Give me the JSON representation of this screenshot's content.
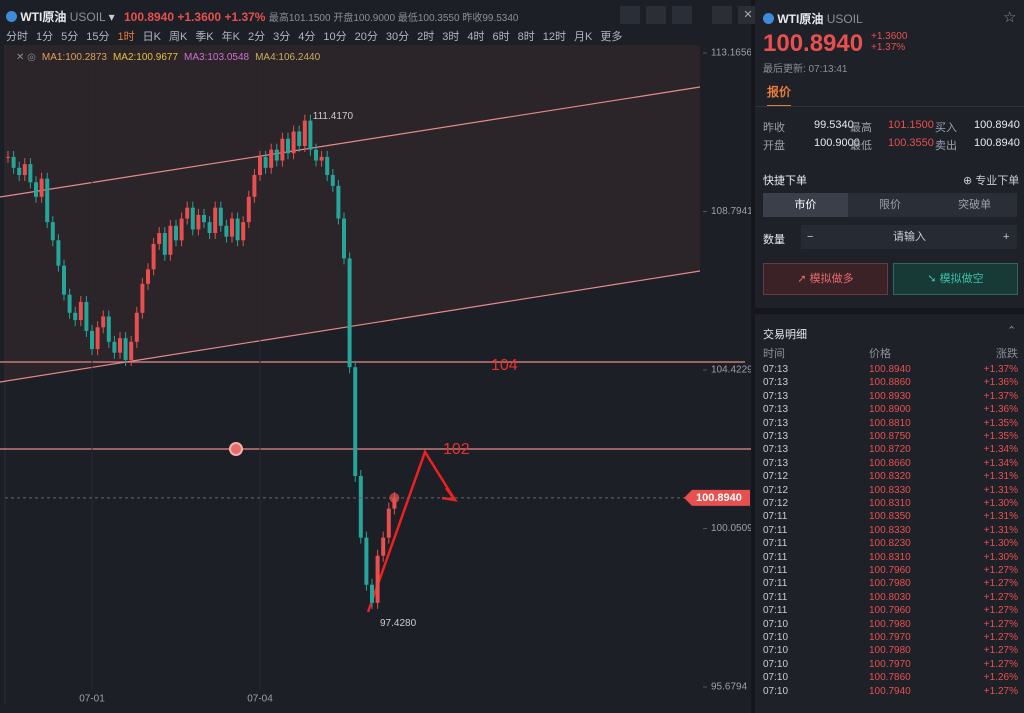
{
  "toolbar": {
    "symbol": "WTI原油",
    "code": "USOIL",
    "price": "100.8940",
    "change": "+1.3600",
    "change_pct": "+1.37%",
    "high_label": "最高",
    "high": "101.1500",
    "open_label": "开盘",
    "open": "100.9000",
    "low_label": "最低",
    "low": "100.3550",
    "prev_label": "昨收",
    "prev": "99.5340"
  },
  "intervals": [
    "分时",
    "1分",
    "5分",
    "15分",
    "1时",
    "日K",
    "周K",
    "季K",
    "年K",
    "2分",
    "3分",
    "4分",
    "10分",
    "20分",
    "30分",
    "2时",
    "3时",
    "4时",
    "6时",
    "8时",
    "12时",
    "月K",
    "更多"
  ],
  "active_interval": "1时",
  "ma": [
    "MA1:100.2873",
    "MA2:100.9677",
    "MA3:103.0548",
    "MA4:106.2440"
  ],
  "ma_colors": [
    "#e0a060",
    "#e8c040",
    "#d070d0",
    "#c8b060"
  ],
  "chart": {
    "type": "candlestick",
    "up_color": "#e84f4f",
    "down_color": "#26a69a",
    "closes": [
      110.3,
      110.0,
      109.8,
      110.1,
      109.6,
      109.2,
      109.7,
      108.5,
      108.0,
      107.3,
      106.5,
      106.0,
      105.8,
      106.3,
      105.5,
      105.0,
      105.6,
      105.9,
      105.2,
      104.9,
      105.3,
      104.7,
      105.2,
      106.0,
      106.8,
      107.2,
      107.9,
      108.2,
      107.6,
      108.4,
      108.0,
      108.6,
      108.9,
      108.3,
      108.7,
      108.5,
      108.2,
      108.9,
      108.4,
      108.1,
      108.6,
      108.0,
      108.5,
      109.2,
      109.8,
      110.3,
      110.0,
      110.5,
      110.2,
      110.8,
      110.4,
      111.0,
      110.6,
      111.3,
      110.5,
      110.2,
      110.3,
      109.8,
      109.5,
      108.6,
      107.5,
      104.5,
      101.5,
      99.8,
      98.5,
      98.0,
      99.3,
      99.8,
      100.6,
      100.894
    ],
    "ylim": [
      95.6794,
      113.1656
    ],
    "yticks": [
      113.1656,
      108.7941,
      104.4229,
      100.0509,
      95.6794
    ],
    "xticks": [
      {
        "value": 15,
        "label": "07-01"
      },
      {
        "value": 45,
        "label": "07-04"
      }
    ],
    "last_price": {
      "value": 100.894,
      "label": "100.8940"
    },
    "high_mark": {
      "value": 111.417,
      "label": "111.4170"
    },
    "low_mark": {
      "value": 97.428,
      "label": "97.4280"
    },
    "annotations": [
      "104",
      "102"
    ]
  },
  "panel": {
    "symbol": "WTI原油",
    "code": "USOIL",
    "price": "100.8940",
    "change": "+1.3600",
    "change_pct": "+1.37%",
    "update": "最后更新: 07:13:41",
    "tab": "报价",
    "quote": [
      [
        "昨收",
        "99.5340",
        "最高",
        "101.1500",
        "买入",
        "100.8940"
      ],
      [
        "开盘",
        "100.9000",
        "最低",
        "100.3550",
        "卖出",
        "100.8940"
      ]
    ],
    "quick_order": "快捷下单",
    "pro_order": "专业下单",
    "order_tabs": [
      "市价",
      "限价",
      "突破单"
    ],
    "qty_label": "数量",
    "qty_placeholder": "请输入",
    "buy": "模拟做多",
    "sell": "模拟做空"
  },
  "trades": {
    "title": "交易明细",
    "headers": [
      "时间",
      "价格",
      "涨跌"
    ],
    "rows": [
      [
        "07:13",
        "100.8940",
        "+1.37%"
      ],
      [
        "07:13",
        "100.8860",
        "+1.36%"
      ],
      [
        "07:13",
        "100.8930",
        "+1.37%"
      ],
      [
        "07:13",
        "100.8900",
        "+1.36%"
      ],
      [
        "07:13",
        "100.8810",
        "+1.35%"
      ],
      [
        "07:13",
        "100.8750",
        "+1.35%"
      ],
      [
        "07:13",
        "100.8720",
        "+1.34%"
      ],
      [
        "07:13",
        "100.8660",
        "+1.34%"
      ],
      [
        "07:12",
        "100.8320",
        "+1.31%"
      ],
      [
        "07:12",
        "100.8330",
        "+1.31%"
      ],
      [
        "07:12",
        "100.8310",
        "+1.30%"
      ],
      [
        "07:11",
        "100.8350",
        "+1.31%"
      ],
      [
        "07:11",
        "100.8330",
        "+1.31%"
      ],
      [
        "07:11",
        "100.8230",
        "+1.30%"
      ],
      [
        "07:11",
        "100.8310",
        "+1.30%"
      ],
      [
        "07:11",
        "100.7960",
        "+1.27%"
      ],
      [
        "07:11",
        "100.7980",
        "+1.27%"
      ],
      [
        "07:11",
        "100.8030",
        "+1.27%"
      ],
      [
        "07:11",
        "100.7960",
        "+1.27%"
      ],
      [
        "07:10",
        "100.7980",
        "+1.27%"
      ],
      [
        "07:10",
        "100.7970",
        "+1.27%"
      ],
      [
        "07:10",
        "100.7980",
        "+1.27%"
      ],
      [
        "07:10",
        "100.7970",
        "+1.27%"
      ],
      [
        "07:10",
        "100.7860",
        "+1.26%"
      ],
      [
        "07:10",
        "100.7940",
        "+1.27%"
      ]
    ]
  }
}
